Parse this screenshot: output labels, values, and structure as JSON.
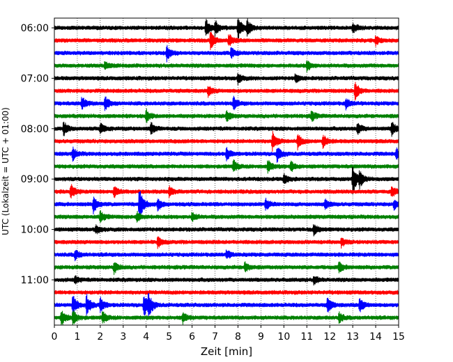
{
  "chart_data": {
    "type": "line",
    "title": "",
    "xlabel": "Zeit  [min]",
    "ylabel": "UTC (Lokalzeit = UTC + 01:00)",
    "xlim": [
      0,
      15
    ],
    "x_ticks": [
      0,
      1,
      2,
      3,
      4,
      5,
      6,
      7,
      8,
      9,
      10,
      11,
      12,
      13,
      14,
      15
    ],
    "x_tick_labels": [
      "0",
      "1",
      "2",
      "3",
      "4",
      "5",
      "6",
      "7",
      "8",
      "9",
      "10",
      "11",
      "12",
      "13",
      "14",
      "15"
    ],
    "y_tick_labels": [
      "06:00",
      "07:00",
      "08:00",
      "09:00",
      "10:00",
      "11:00"
    ],
    "y_tick_rows": [
      0,
      4,
      8,
      12,
      16,
      20
    ],
    "row_interval_minutes": 15,
    "grid": "vertical dotted at each minute",
    "colors": [
      "#000000",
      "#ff0000",
      "#0000ff",
      "#008000"
    ],
    "series": [
      {
        "row": 0,
        "start": "06:00",
        "color": "#000000",
        "events": [
          [
            6.6,
            0.55
          ],
          [
            7.0,
            0.4
          ],
          [
            8.0,
            0.65
          ],
          [
            8.4,
            0.5
          ],
          [
            13.0,
            0.3
          ]
        ]
      },
      {
        "row": 1,
        "start": "06:15",
        "color": "#ff0000",
        "events": [
          [
            6.8,
            0.55
          ],
          [
            7.6,
            0.35
          ],
          [
            14.0,
            0.25
          ]
        ]
      },
      {
        "row": 2,
        "start": "06:30",
        "color": "#0000ff",
        "events": [
          [
            4.9,
            0.45
          ],
          [
            7.7,
            0.3
          ]
        ]
      },
      {
        "row": 3,
        "start": "06:45",
        "color": "#008000",
        "events": [
          [
            2.2,
            0.25
          ],
          [
            11.0,
            0.3
          ]
        ]
      },
      {
        "row": 4,
        "start": "07:00",
        "color": "#000000",
        "events": [
          [
            8.0,
            0.3
          ],
          [
            10.5,
            0.25
          ]
        ]
      },
      {
        "row": 5,
        "start": "07:15",
        "color": "#ff0000",
        "events": [
          [
            6.7,
            0.3
          ],
          [
            13.1,
            0.55
          ]
        ]
      },
      {
        "row": 6,
        "start": "07:30",
        "color": "#0000ff",
        "events": [
          [
            1.2,
            0.4
          ],
          [
            2.2,
            0.45
          ],
          [
            7.8,
            0.35
          ],
          [
            12.7,
            0.3
          ]
        ]
      },
      {
        "row": 7,
        "start": "07:45",
        "color": "#008000",
        "events": [
          [
            4.0,
            0.35
          ],
          [
            7.5,
            0.3
          ],
          [
            11.2,
            0.3
          ]
        ]
      },
      {
        "row": 8,
        "start": "08:00",
        "color": "#000000",
        "events": [
          [
            0.4,
            0.4
          ],
          [
            2.0,
            0.4
          ],
          [
            4.2,
            0.35
          ],
          [
            13.2,
            0.35
          ],
          [
            14.7,
            0.45
          ]
        ]
      },
      {
        "row": 9,
        "start": "08:15",
        "color": "#ff0000",
        "events": [
          [
            9.5,
            0.6
          ],
          [
            10.6,
            0.45
          ],
          [
            11.7,
            0.4
          ]
        ]
      },
      {
        "row": 10,
        "start": "08:30",
        "color": "#0000ff",
        "events": [
          [
            0.8,
            0.35
          ],
          [
            7.5,
            0.35
          ],
          [
            9.7,
            0.45
          ],
          [
            14.9,
            0.3
          ]
        ]
      },
      {
        "row": 11,
        "start": "08:45",
        "color": "#008000",
        "events": [
          [
            7.8,
            0.35
          ],
          [
            9.3,
            0.35
          ],
          [
            10.3,
            0.3
          ]
        ]
      },
      {
        "row": 12,
        "start": "09:00",
        "color": "#000000",
        "events": [
          [
            13.0,
            0.9
          ],
          [
            13.3,
            0.4
          ],
          [
            10.0,
            0.3
          ]
        ]
      },
      {
        "row": 13,
        "start": "09:15",
        "color": "#ff0000",
        "events": [
          [
            0.7,
            0.45
          ],
          [
            2.6,
            0.3
          ],
          [
            5.0,
            0.3
          ],
          [
            14.7,
            0.35
          ]
        ]
      },
      {
        "row": 14,
        "start": "09:30",
        "color": "#0000ff",
        "events": [
          [
            1.7,
            0.5
          ],
          [
            3.7,
            1.0
          ],
          [
            4.5,
            0.35
          ],
          [
            9.2,
            0.3
          ],
          [
            11.8,
            0.3
          ],
          [
            14.8,
            0.3
          ]
        ]
      },
      {
        "row": 15,
        "start": "09:45",
        "color": "#008000",
        "events": [
          [
            2.0,
            0.35
          ],
          [
            3.6,
            0.3
          ],
          [
            6.0,
            0.25
          ]
        ]
      },
      {
        "row": 16,
        "start": "10:00",
        "color": "#000000",
        "events": [
          [
            1.8,
            0.25
          ],
          [
            11.3,
            0.3
          ]
        ]
      },
      {
        "row": 17,
        "start": "10:15",
        "color": "#ff0000",
        "events": [
          [
            4.5,
            0.3
          ],
          [
            12.5,
            0.25
          ]
        ]
      },
      {
        "row": 18,
        "start": "10:30",
        "color": "#0000ff",
        "events": [
          [
            0.9,
            0.3
          ],
          [
            7.5,
            0.25
          ]
        ]
      },
      {
        "row": 19,
        "start": "10:45",
        "color": "#008000",
        "events": [
          [
            2.6,
            0.35
          ],
          [
            8.3,
            0.3
          ],
          [
            12.4,
            0.3
          ]
        ]
      },
      {
        "row": 20,
        "start": "11:00",
        "color": "#000000",
        "events": [
          [
            0.9,
            0.2
          ],
          [
            11.3,
            0.25
          ]
        ]
      },
      {
        "row": 21,
        "start": "11:15",
        "color": "#ff0000",
        "events": []
      },
      {
        "row": 22,
        "start": "11:30",
        "color": "#0000ff",
        "events": [
          [
            0.8,
            0.6
          ],
          [
            1.4,
            0.65
          ],
          [
            2.0,
            0.45
          ],
          [
            3.9,
            0.7
          ],
          [
            4.1,
            0.6
          ],
          [
            11.9,
            0.45
          ],
          [
            13.3,
            0.4
          ]
        ]
      },
      {
        "row": 23,
        "start": "11:45",
        "color": "#008000",
        "events": [
          [
            0.3,
            0.5
          ],
          [
            0.8,
            0.45
          ],
          [
            2.1,
            0.35
          ],
          [
            5.6,
            0.3
          ],
          [
            12.4,
            0.3
          ]
        ]
      }
    ]
  }
}
